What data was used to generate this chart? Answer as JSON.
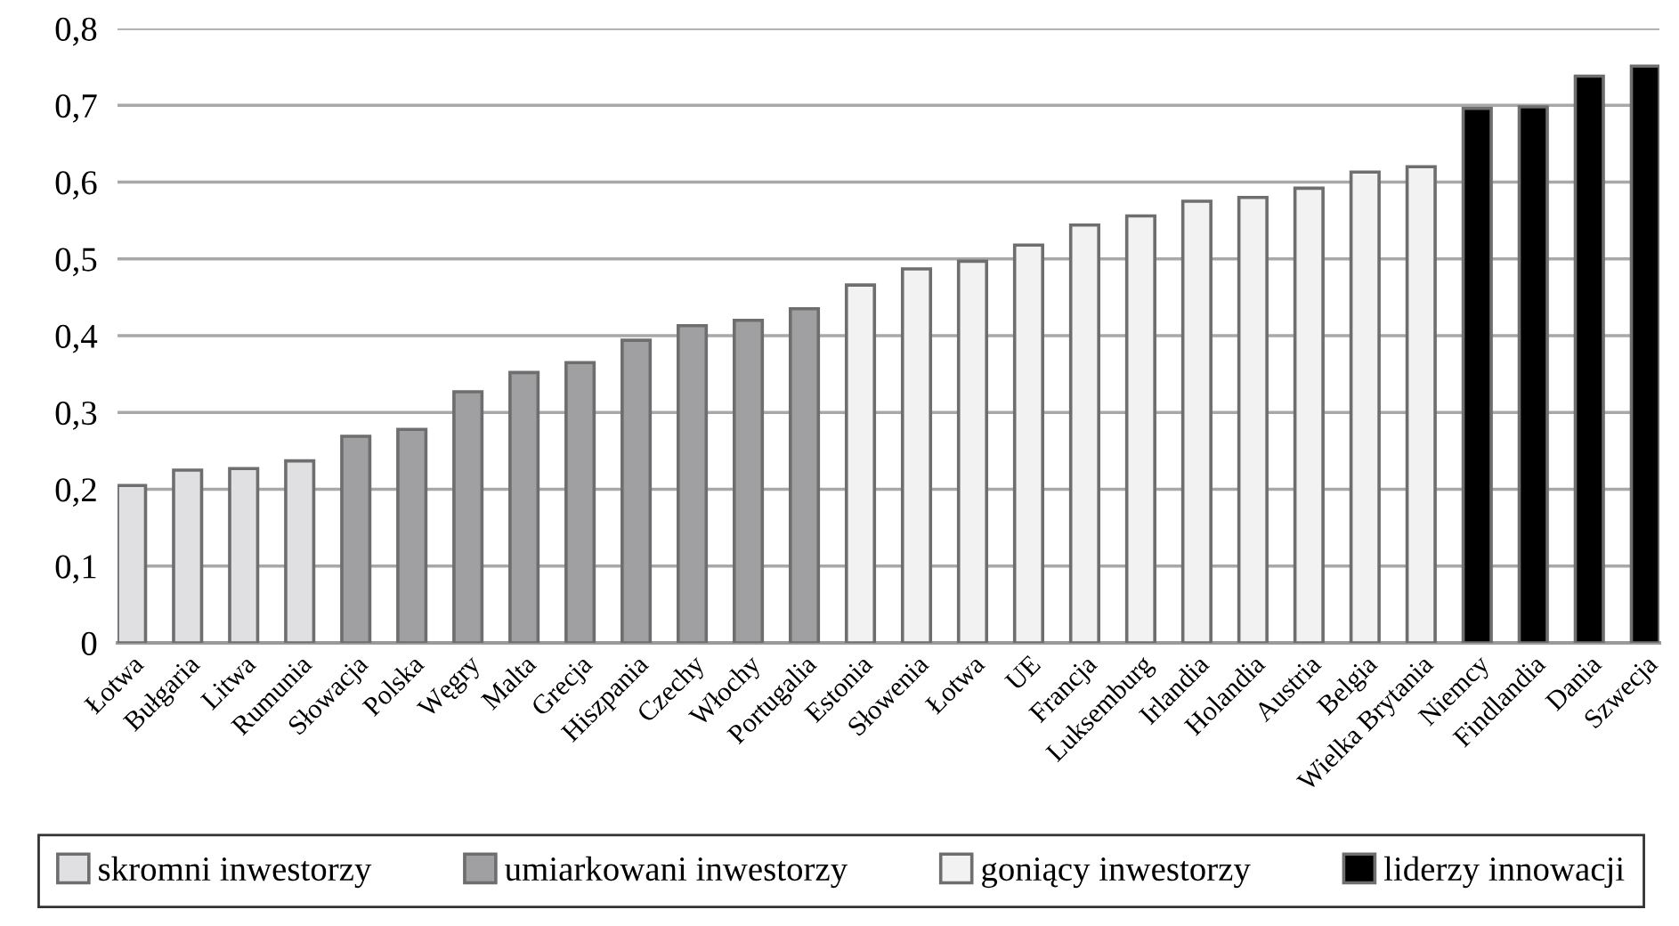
{
  "chart_data": {
    "type": "bar",
    "stacked": true,
    "categories": [
      "Łotwa",
      "Bułgaria",
      "Litwa",
      "Rumunia",
      "Słowacja",
      "Polska",
      "Węgry",
      "Malta",
      "Grecja",
      "Hiszpania",
      "Czechy",
      "Włochy",
      "Portugalia",
      "Estonia",
      "Słowenia",
      "Łotwa",
      "UE",
      "Francja",
      "Luksemburg",
      "Irlandia",
      "Holandia",
      "Austria",
      "Belgia",
      "Wielka Brytania",
      "Niemcy",
      "Findlandia",
      "Dania",
      "Szwecja"
    ],
    "series": [
      {
        "name": "skromni inwestorzy",
        "color": "#e0e0e2",
        "values": [
          0.205,
          0.225,
          0.227,
          0.237,
          null,
          null,
          null,
          null,
          null,
          null,
          null,
          null,
          null,
          null,
          null,
          null,
          null,
          null,
          null,
          null,
          null,
          null,
          null,
          null,
          null,
          null,
          null,
          null
        ]
      },
      {
        "name": "umiarkowani inwestorzy",
        "color": "#a0a0a2",
        "values": [
          null,
          null,
          null,
          null,
          0.269,
          0.278,
          0.327,
          0.352,
          0.365,
          0.394,
          0.413,
          0.42,
          0.435,
          null,
          null,
          null,
          null,
          null,
          null,
          null,
          null,
          null,
          null,
          null,
          null,
          null,
          null,
          null
        ]
      },
      {
        "name": "goniący inwestorzy",
        "color": "#f2f2f2",
        "values": [
          null,
          null,
          null,
          null,
          null,
          null,
          null,
          null,
          null,
          null,
          null,
          null,
          null,
          0.466,
          0.487,
          0.497,
          0.518,
          0.544,
          0.556,
          0.575,
          0.58,
          0.592,
          0.613,
          0.62,
          null,
          null,
          null,
          null
        ]
      },
      {
        "name": "liderzy innowacji",
        "color": "#000000",
        "values": [
          null,
          null,
          null,
          null,
          null,
          null,
          null,
          null,
          null,
          null,
          null,
          null,
          null,
          null,
          null,
          null,
          null,
          null,
          null,
          null,
          null,
          null,
          null,
          null,
          0.696,
          0.698,
          0.738,
          0.751
        ]
      }
    ],
    "ylim": [
      0,
      0.8
    ],
    "yticks": [
      0,
      {
        "value": 0.1,
        "label": "0,1"
      },
      {
        "value": 0.2,
        "label": "0,2"
      },
      {
        "value": 0.3,
        "label": "0,3"
      },
      {
        "value": 0.4,
        "label": "0,4"
      },
      {
        "value": 0.5,
        "label": "0,5"
      },
      {
        "value": 0.6,
        "label": "0,6"
      },
      {
        "value": 0.7,
        "label": "0,7"
      },
      {
        "value": 0.8,
        "label": "0,8"
      }
    ],
    "grid": "y",
    "legend": "bottom"
  }
}
